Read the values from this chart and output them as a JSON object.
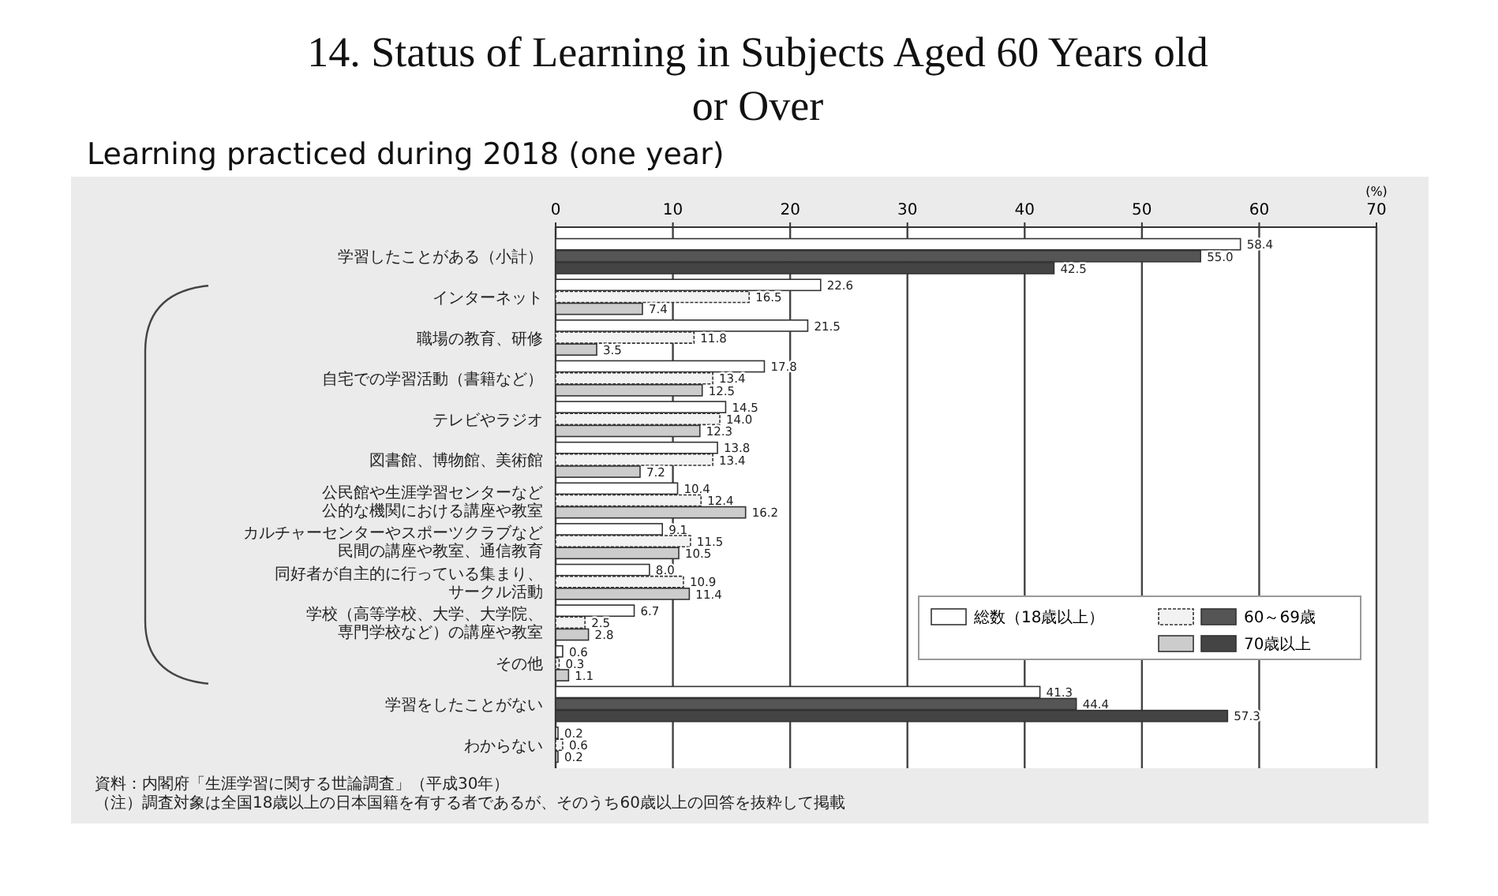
{
  "chart_data": {
    "type": "bar",
    "orientation": "horizontal",
    "title": "14. Status of Learning in Subjects Aged 60 Years old or Over",
    "subtitle": "Learning practiced during 2018 (one year)",
    "xlabel": "(%)",
    "categories": [
      "学習したことがある（小計）",
      "インターネット",
      "職場の教育、研修",
      "自宅での学習活動（書籍など）",
      "テレビやラジオ",
      "図書館、博物館、美術館",
      "公民館や生涯学習センターなど公的な機関における講座や教室",
      "カルチャーセンターやスポーツクラブなど民間の講座や教室、通信教育",
      "同好者が自主的に行っている集まり、サークル活動",
      "学校（高等学校、大学、大学院、専門学校など）の講座や教室",
      "その他",
      "学習をしたことがない",
      "わからない"
    ],
    "series": [
      {
        "name": "総数（18歳以上）",
        "color": "#ffffff",
        "values": [
          58.4,
          22.6,
          21.5,
          17.8,
          14.5,
          13.8,
          10.4,
          9.1,
          8.0,
          6.7,
          0.6,
          41.3,
          0.2
        ],
        "value_labels": [
          "58.4",
          "22.6",
          "21.5",
          "17.8",
          "14.5",
          "13.8",
          "10.4",
          "9.1",
          "8.0",
          "6.7",
          "0.6",
          "41.3",
          "0.2"
        ]
      },
      {
        "name": "60～69歳",
        "color": "#f2f2f2",
        "colors": [
          "#555555",
          "#f2f2f2",
          "#f2f2f2",
          "#f2f2f2",
          "#f2f2f2",
          "#f2f2f2",
          "#f2f2f2",
          "#f2f2f2",
          "#f2f2f2",
          "#f2f2f2",
          "#f2f2f2",
          "#555555",
          "#f2f2f2"
        ],
        "values": [
          55.0,
          16.5,
          11.8,
          13.4,
          14.0,
          13.4,
          12.4,
          11.5,
          10.9,
          2.5,
          0.3,
          44.4,
          0.6
        ],
        "value_labels": [
          "55.0",
          "16.5",
          "11.8",
          "13.4",
          "14.0",
          "13.4",
          "12.4",
          "11.5",
          "10.9",
          "2.5",
          "0.3",
          "44.4",
          "0.6"
        ]
      },
      {
        "name": "70歳以上",
        "color": "#cccccc",
        "colors": [
          "#444444",
          "#cccccc",
          "#cccccc",
          "#cccccc",
          "#cccccc",
          "#cccccc",
          "#cccccc",
          "#cccccc",
          "#cccccc",
          "#cccccc",
          "#cccccc",
          "#444444",
          "#cccccc"
        ],
        "values": [
          42.5,
          7.4,
          3.5,
          12.5,
          12.3,
          7.2,
          16.2,
          10.5,
          11.4,
          2.8,
          1.1,
          57.3,
          0.2
        ],
        "value_labels": [
          "42.5",
          "7.4",
          "3.5",
          "12.5",
          "12.3",
          "7.2",
          "16.2",
          "10.5",
          "11.4",
          "2.8",
          "1.1",
          "57.3",
          "0.2"
        ]
      }
    ],
    "xlim": [
      0,
      70
    ],
    "xticks": [
      0,
      10,
      20,
      30,
      40,
      50,
      60,
      70
    ],
    "grid": "x",
    "legend": "right",
    "annotations": [
      "資料：内閣府「生涯学習に関する世論調査」（平成30年）",
      "（注）調査対象は全国18歳以上の日本国籍を有する者であるが、そのうち60歳以上の回答を抜粋して掲載"
    ]
  }
}
